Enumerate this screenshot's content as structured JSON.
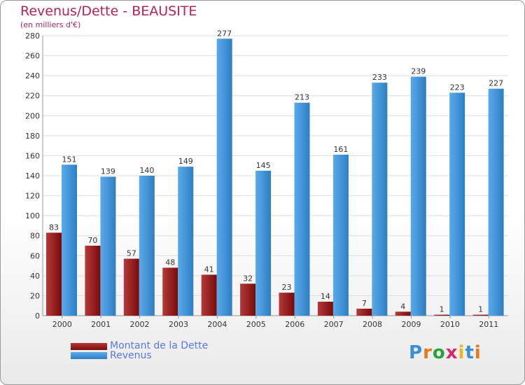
{
  "logo": {
    "text": "Proxiti"
  },
  "colors": {
    "debt": "#7a0a0a",
    "debt_light": "#b33a3a",
    "revenue": "#5aaaea",
    "revenue_dark": "#2e7ec4",
    "title": "#b0245a",
    "legend_text": "#5a78e0",
    "grid": "#dddddd"
  },
  "chart_data": {
    "type": "bar",
    "title": "Revenus/Dette - BEAUSITE",
    "subtitle": "(en milliers d'€)",
    "xlabel": "",
    "ylabel": "",
    "ylim": [
      0,
      280
    ],
    "ytick_step": 20,
    "grid": true,
    "legend_position": "bottom-left",
    "categories": [
      "2000",
      "2001",
      "2002",
      "2003",
      "2004",
      "2005",
      "2006",
      "2007",
      "2008",
      "2009",
      "2010",
      "2011"
    ],
    "series": [
      {
        "name": "Montant de la Dette",
        "values": [
          83,
          70,
          57,
          48,
          41,
          32,
          23,
          14,
          7,
          4,
          1,
          1
        ]
      },
      {
        "name": "Revenus",
        "values": [
          151,
          139,
          140,
          149,
          277,
          145,
          213,
          161,
          233,
          239,
          223,
          227
        ]
      }
    ]
  }
}
